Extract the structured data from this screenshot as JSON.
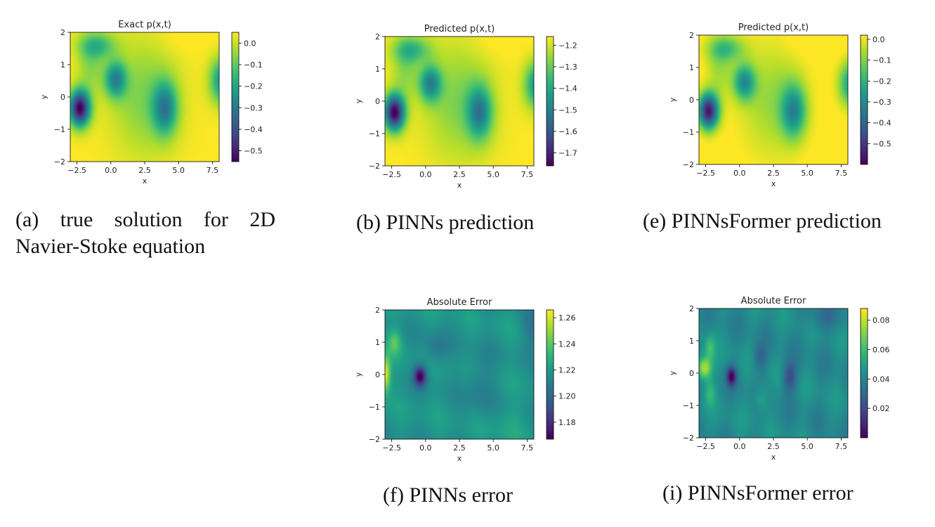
{
  "colors": {
    "viridis": [
      "#440154",
      "#482878",
      "#3e4a89",
      "#31688e",
      "#26828e",
      "#1f9e89",
      "#35b779",
      "#6ece58",
      "#b5de2b",
      "#fde725"
    ]
  },
  "chart_data": [
    {
      "id": "a",
      "type": "heatmap",
      "title": "Exact p(x,t)",
      "xlabel": "x",
      "ylabel": "y",
      "xlim": [
        -3,
        8
      ],
      "ylim": [
        -2,
        2
      ],
      "xticks": [
        "−2.5",
        "0.0",
        "2.5",
        "5.0",
        "7.5"
      ],
      "xtick_values": [
        -2.5,
        0,
        2.5,
        5,
        7.5
      ],
      "yticks": [
        "−2",
        "−1",
        "0",
        "1",
        "2"
      ],
      "ytick_values": [
        -2,
        -1,
        0,
        1,
        2
      ],
      "cbar_ticks": [
        "0.0",
        "−0.1",
        "−0.2",
        "−0.3",
        "−0.4",
        "−0.5"
      ],
      "cbar_tick_values": [
        0.0,
        -0.1,
        -0.2,
        -0.3,
        -0.4,
        -0.5
      ],
      "vmin": -0.55,
      "vmax": 0.05,
      "field": "pressure",
      "offset": 0
    },
    {
      "id": "b",
      "type": "heatmap",
      "title": "Predicted p(x,t)",
      "xlabel": "x",
      "ylabel": "y",
      "xlim": [
        -3,
        8
      ],
      "ylim": [
        -2,
        2
      ],
      "xticks": [
        "−2.5",
        "0.0",
        "2.5",
        "5.0",
        "7.5"
      ],
      "xtick_values": [
        -2.5,
        0,
        2.5,
        5,
        7.5
      ],
      "yticks": [
        "−2",
        "−1",
        "0",
        "1",
        "2"
      ],
      "ytick_values": [
        -2,
        -1,
        0,
        1,
        2
      ],
      "cbar_ticks": [
        "−1.2",
        "−1.3",
        "−1.4",
        "−1.5",
        "−1.6",
        "−1.7"
      ],
      "cbar_tick_values": [
        -1.2,
        -1.3,
        -1.4,
        -1.5,
        -1.6,
        -1.7
      ],
      "vmin": -1.76,
      "vmax": -1.16,
      "field": "pressure",
      "offset": -1.21
    },
    {
      "id": "e",
      "type": "heatmap",
      "title": "Predicted p(x,t)",
      "xlabel": "x",
      "ylabel": "y",
      "xlim": [
        -3,
        8
      ],
      "ylim": [
        -2,
        2
      ],
      "xticks": [
        "−2.5",
        "0.0",
        "2.5",
        "5.0",
        "7.5"
      ],
      "xtick_values": [
        -2.5,
        0,
        2.5,
        5,
        7.5
      ],
      "yticks": [
        "−2",
        "−1",
        "0",
        "1",
        "2"
      ],
      "ytick_values": [
        -2,
        -1,
        0,
        1,
        2
      ],
      "cbar_ticks": [
        "0.0",
        "−0.1",
        "−0.2",
        "−0.3",
        "−0.4",
        "−0.5"
      ],
      "cbar_tick_values": [
        0.0,
        -0.1,
        -0.2,
        -0.3,
        -0.4,
        -0.5
      ],
      "vmin": -0.6,
      "vmax": 0.02,
      "field": "pressure",
      "offset": -0.01
    },
    {
      "id": "f",
      "type": "heatmap",
      "title": "Absolute Error",
      "xlabel": "x",
      "ylabel": "y",
      "xlim": [
        -3,
        8
      ],
      "ylim": [
        -2,
        2
      ],
      "xticks": [
        "−2.5",
        "0.0",
        "2.5",
        "5.0",
        "7.5"
      ],
      "xtick_values": [
        -2.5,
        0,
        2.5,
        5,
        7.5
      ],
      "yticks": [
        "−2",
        "−1",
        "0",
        "1",
        "2"
      ],
      "ytick_values": [
        -2,
        -1,
        0,
        1,
        2
      ],
      "cbar_ticks": [
        "1.26",
        "1.24",
        "1.22",
        "1.20",
        "1.18"
      ],
      "cbar_tick_values": [
        1.26,
        1.24,
        1.22,
        1.2,
        1.18
      ],
      "vmin": 1.167,
      "vmax": 1.266,
      "field": "error_pinns"
    },
    {
      "id": "i",
      "type": "heatmap",
      "title": "Absolute Error",
      "xlabel": "x",
      "ylabel": "y",
      "xlim": [
        -3,
        8
      ],
      "ylim": [
        -2,
        2
      ],
      "xticks": [
        "−2.5",
        "0.0",
        "2.5",
        "5.0",
        "7.5"
      ],
      "xtick_values": [
        -2.5,
        0,
        2.5,
        5,
        7.5
      ],
      "yticks": [
        "−2",
        "−1",
        "0",
        "1",
        "2"
      ],
      "ytick_values": [
        -2,
        -1,
        0,
        1,
        2
      ],
      "cbar_ticks": [
        "0.08",
        "0.06",
        "0.04",
        "0.02"
      ],
      "cbar_tick_values": [
        0.08,
        0.06,
        0.04,
        0.02
      ],
      "vmin": 0.0,
      "vmax": 0.088,
      "field": "error_former"
    }
  ],
  "captions": {
    "a": "(a) true solution for 2D Navier-Stoke equation",
    "b": "(b) PINNs prediction",
    "e": "(e) PINNsFormer prediction",
    "f": "(f) PINNs error",
    "i": "(i) PINNsFormer error"
  }
}
